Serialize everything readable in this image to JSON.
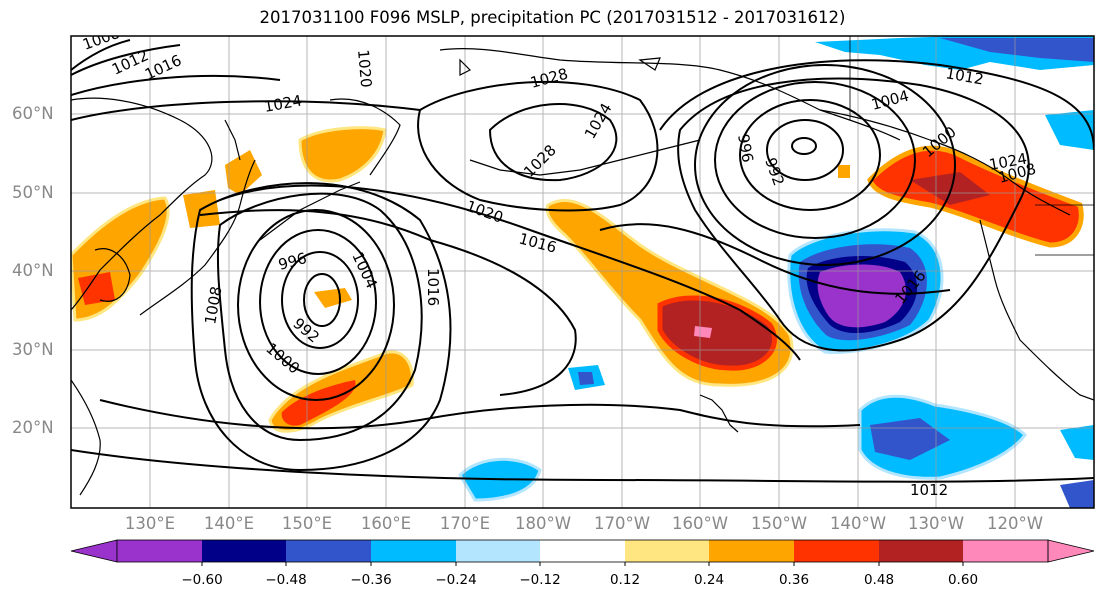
{
  "title": "2017031100 F096 MSLP, precipitation PC (2017031512 - 2017031612)",
  "lat_labels": [
    "60°N",
    "50°N",
    "40°N",
    "30°N",
    "20°N"
  ],
  "lon_labels": [
    "130°E",
    "140°E",
    "150°E",
    "160°E",
    "170°E",
    "180°W",
    "170°W",
    "160°W",
    "150°W",
    "140°W",
    "130°W",
    "120°W"
  ],
  "isobar_labels": [
    "1008",
    "1012",
    "1016",
    "1020",
    "1024",
    "1024",
    "1028",
    "1028",
    "1024",
    "1020",
    "1016",
    "996",
    "992",
    "1000",
    "1004",
    "1008",
    "1016",
    "996",
    "992",
    "1004",
    "1000",
    "1008",
    "1012",
    "1016",
    "1012"
  ],
  "colorbar": {
    "tick_labels": [
      "−0.60",
      "−0.48",
      "−0.36",
      "−0.24",
      "−0.12",
      "0.12",
      "0.24",
      "0.36",
      "0.48",
      "0.60"
    ],
    "colors": [
      "#9933cc",
      "#000088",
      "#3355cc",
      "#00bbff",
      "#b3e5ff",
      "#ffffff",
      "#ffe680",
      "#ffa500",
      "#ff3300",
      "#b22222",
      "#ff88bb"
    ]
  }
}
